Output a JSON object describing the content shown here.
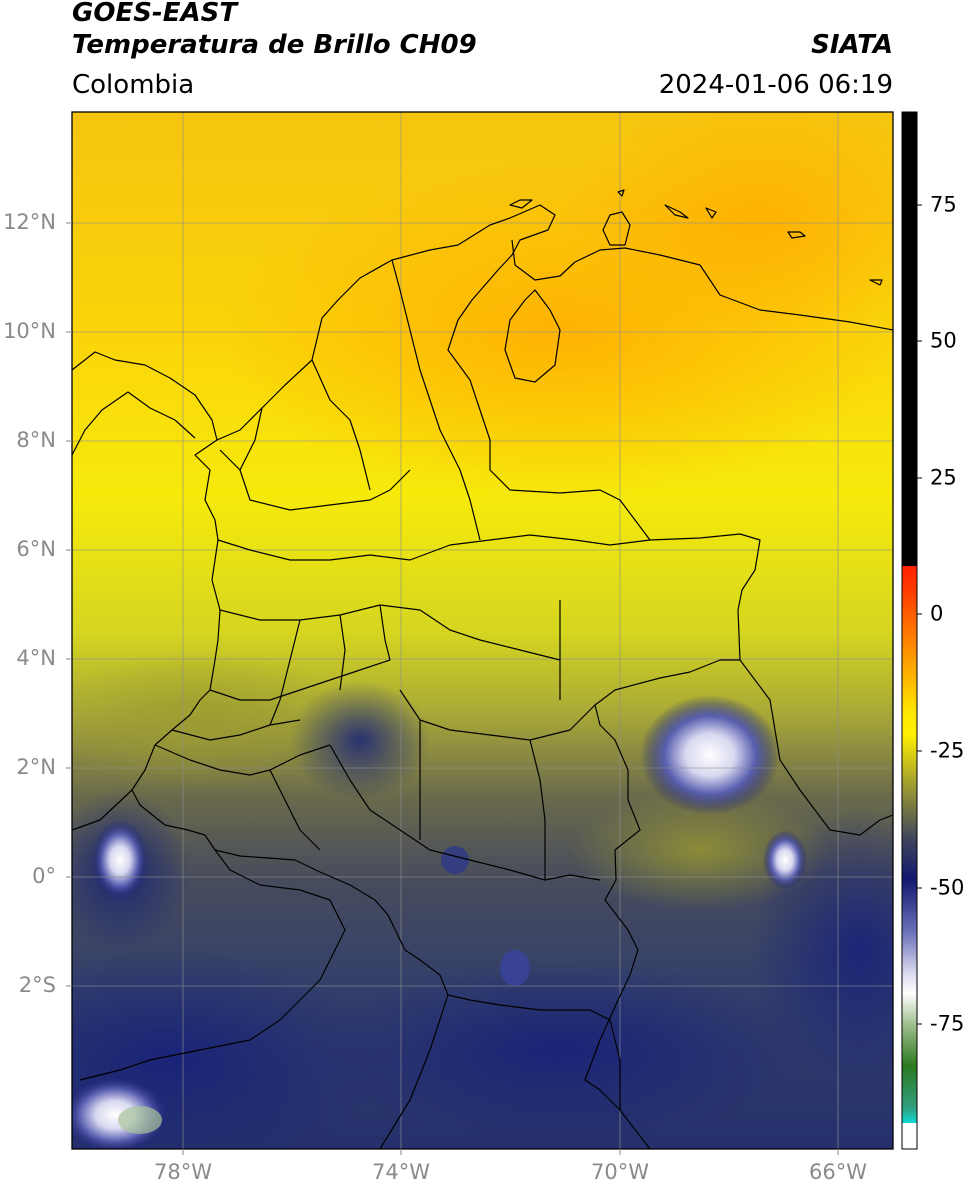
{
  "header": {
    "line1": "GOES-EAST",
    "line2": "Temperatura de Brillo CH09",
    "brand": "SIATA",
    "region": "Colombia",
    "timestamp": "2024-01-06 06:19"
  },
  "axes": {
    "lat_labels": [
      "12°N",
      "10°N",
      "8°N",
      "6°N",
      "4°N",
      "2°N",
      "0°",
      "2°S"
    ],
    "lon_labels": [
      "78°W",
      "74°W",
      "70°W",
      "66°W"
    ]
  },
  "colorbar": {
    "tick_labels": [
      "75",
      "50",
      "25",
      "0",
      "-25",
      "-50",
      "-75"
    ],
    "colors": {
      "black": "#000000",
      "red": "#ff2000",
      "orange": "#ffa500",
      "yellow": "#ffee00",
      "olive": "#8a8a38",
      "slate": "#3c4660",
      "navy": "#12186e",
      "white": "#ffffff",
      "green": "#2c7a20",
      "cyan": "#10d8d0"
    }
  }
}
